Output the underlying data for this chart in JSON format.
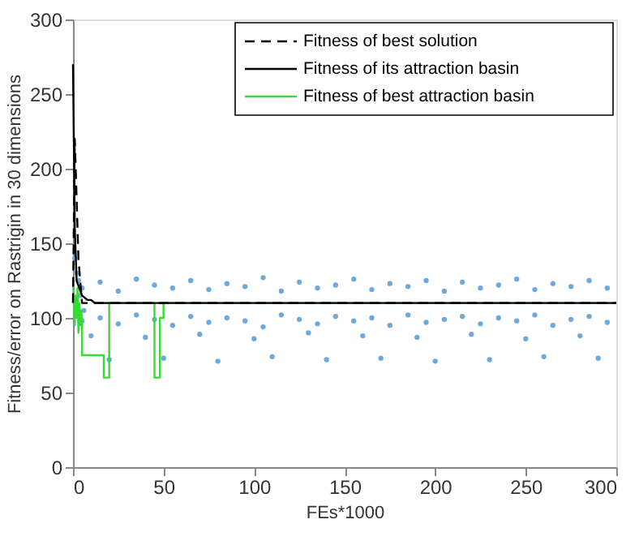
{
  "chart_data": {
    "type": "line",
    "xlabel": "FEs*1000",
    "ylabel": "Fitness/error on Rastrigin in 30 dimensions",
    "xlim": [
      0,
      300
    ],
    "ylim": [
      0,
      300
    ],
    "xticks": [
      0,
      50,
      100,
      150,
      200,
      250,
      300
    ],
    "yticks": [
      0,
      50,
      100,
      150,
      200,
      250,
      300
    ],
    "grid": false,
    "legend": "top right",
    "series": [
      {
        "name": "Fitness of best solution",
        "color": "#000000",
        "line_style": "dashed",
        "x": [
          0,
          1,
          3,
          5,
          300
        ],
        "values": [
          110,
          220,
          140,
          110,
          110
        ]
      },
      {
        "name": "Fitness of its attraction basin",
        "color": "#000000",
        "line_style": "solid",
        "x": [
          0,
          1,
          2,
          5,
          8,
          10,
          12,
          300
        ],
        "values": [
          270,
          160,
          125,
          115,
          112,
          112,
          110,
          110
        ]
      },
      {
        "name": "Fitness of best attraction basin",
        "color": "#33dd33",
        "line_style": "solid",
        "x": [
          0,
          1,
          1.5,
          2,
          2.5,
          3,
          3.5,
          4,
          4.5,
          5,
          5,
          17,
          17,
          20,
          20,
          45,
          45,
          48,
          48,
          50,
          50,
          300
        ],
        "values": [
          125,
          95,
          115,
          100,
          120,
          90,
          110,
          95,
          105,
          100,
          75,
          75,
          60,
          60,
          110,
          110,
          60,
          60,
          100,
          100,
          110,
          110
        ]
      },
      {
        "type": "scatter",
        "color": "#6fa8dc",
        "x": [
          1,
          3,
          5,
          15,
          25,
          35,
          45,
          55,
          65,
          75,
          85,
          95,
          105,
          115,
          125,
          135,
          145,
          155,
          165,
          175,
          185,
          195,
          205,
          215,
          225,
          235,
          245,
          255,
          265,
          275,
          285,
          295,
          5,
          15,
          25,
          35,
          45,
          55,
          65,
          75,
          85,
          95,
          105,
          115,
          125,
          135,
          145,
          155,
          165,
          175,
          185,
          195,
          205,
          215,
          225,
          235,
          245,
          255,
          265,
          275,
          285,
          295,
          10,
          40,
          70,
          100,
          130,
          160,
          190,
          220,
          250,
          280,
          20,
          50,
          80,
          110,
          140,
          170,
          200,
          230,
          260,
          290,
          2,
          4,
          6
        ],
        "values": [
          140,
          125,
          120,
          124,
          118,
          126,
          122,
          120,
          125,
          119,
          123,
          121,
          127,
          118,
          124,
          120,
          122,
          126,
          119,
          123,
          121,
          125,
          118,
          124,
          120,
          122,
          126,
          119,
          123,
          121,
          125,
          120,
          98,
          100,
          96,
          102,
          99,
          95,
          101,
          97,
          100,
          98,
          94,
          102,
          99,
          96,
          101,
          98,
          100,
          95,
          102,
          97,
          99,
          101,
          96,
          100,
          98,
          102,
          95,
          99,
          101,
          97,
          88,
          87,
          89,
          86,
          90,
          88,
          87,
          89,
          86,
          88,
          72,
          73,
          71,
          74,
          72,
          73,
          71,
          72,
          74,
          73,
          130,
          115,
          105
        ]
      }
    ]
  }
}
